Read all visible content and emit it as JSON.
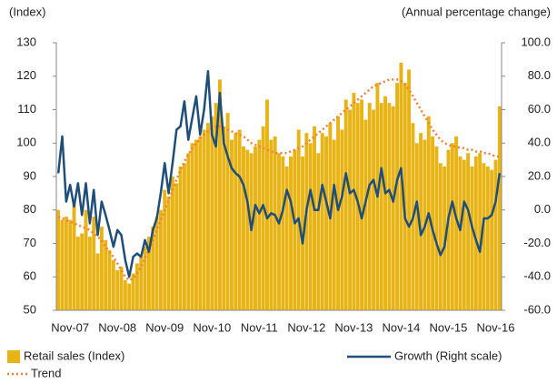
{
  "chart_data": {
    "type": "bar",
    "y_label": "(Index)",
    "y2_label": "(Annual percentage change)",
    "categories": [
      null,
      null,
      null,
      "Nov-07",
      null,
      null,
      null,
      null,
      null,
      null,
      null,
      null,
      null,
      null,
      null,
      "Nov-08",
      null,
      null,
      null,
      null,
      null,
      null,
      null,
      null,
      null,
      null,
      null,
      "Nov-09",
      null,
      null,
      null,
      null,
      null,
      null,
      null,
      null,
      null,
      null,
      null,
      "Nov-10",
      null,
      null,
      null,
      null,
      null,
      null,
      null,
      null,
      null,
      null,
      null,
      "Nov-11",
      null,
      null,
      null,
      null,
      null,
      null,
      null,
      null,
      null,
      null,
      null,
      "Nov-12",
      null,
      null,
      null,
      null,
      null,
      null,
      null,
      null,
      null,
      null,
      null,
      "Nov-13",
      null,
      null,
      null,
      null,
      null,
      null,
      null,
      null,
      null,
      null,
      null,
      "Nov-14",
      null,
      null,
      null,
      null,
      null,
      null,
      null,
      null,
      null,
      null,
      null,
      "Nov-15",
      null,
      null,
      null,
      null,
      null,
      null,
      null,
      null,
      null,
      null,
      null,
      "Nov-16",
      null
    ],
    "series": [
      {
        "name": "Retail  sales (Index)",
        "type": "bar",
        "color": "#e8b314",
        "axis": "y",
        "values": [
          80,
          77,
          78,
          77,
          83,
          72,
          73,
          80,
          72,
          78,
          67,
          75,
          71,
          68,
          65,
          62,
          63,
          59,
          58,
          61,
          64,
          66,
          69,
          72,
          75,
          78,
          80,
          86,
          84,
          90,
          88,
          93,
          94,
          97,
          100,
          101,
          102,
          104,
          106,
          108,
          112,
          119,
          105,
          109,
          101,
          103,
          104,
          99,
          98,
          97,
          99,
          101,
          105,
          113,
          101,
          102,
          97,
          96,
          93,
          96,
          98,
          104,
          96,
          103,
          100,
          105,
          97,
          103,
          102,
          106,
          101,
          108,
          104,
          113,
          110,
          115,
          112,
          113,
          107,
          112,
          110,
          118,
          112,
          114,
          112,
          111,
          118,
          124,
          118,
          122,
          106,
          100,
          103,
          101,
          108,
          102,
          99,
          94,
          93,
          98,
          100,
          102,
          96,
          95,
          97,
          93,
          96,
          97,
          94,
          93,
          92,
          95,
          111
        ]
      },
      {
        "name": "Trend",
        "type": "line",
        "style": "dotted",
        "color": "#f0813a",
        "axis": "y",
        "values": [
          78,
          77.5,
          77,
          76.5,
          76,
          75.5,
          75,
          74.5,
          74,
          73,
          72,
          71,
          69,
          67.5,
          66,
          64,
          62,
          60,
          59,
          59.5,
          61,
          63,
          65.5,
          68,
          71,
          74,
          77,
          80,
          83,
          86,
          89,
          92,
          94.5,
          96.5,
          98.5,
          100,
          101.5,
          102.5,
          103.5,
          104.5,
          105,
          105,
          104.5,
          104,
          103.5,
          103,
          102.5,
          102,
          101,
          100,
          99.5,
          99,
          98.5,
          98,
          97.5,
          97,
          97,
          97,
          97,
          97.5,
          98,
          98.5,
          99,
          100,
          101,
          102,
          103,
          104,
          105,
          106,
          107,
          108,
          109,
          110,
          111,
          112,
          113,
          114,
          115,
          116,
          117,
          117.5,
          118,
          118.5,
          119,
          119,
          119,
          118.5,
          117.5,
          116,
          114,
          112,
          110,
          108,
          106,
          104,
          102.5,
          101,
          100,
          99.5,
          99,
          99,
          98.5,
          98.5,
          98,
          98,
          97.5,
          97.5,
          97,
          97,
          96.5,
          96,
          96
        ]
      },
      {
        "name": "Growth (Right scale)",
        "type": "line",
        "style": "solid",
        "color": "#1f4e7a",
        "axis": "y2",
        "values": [
          22,
          44,
          5,
          15,
          2,
          16,
          -3,
          16,
          -8,
          12,
          -15,
          5,
          -3,
          -12,
          -22,
          -12,
          -15,
          -30,
          -40,
          -28,
          -26,
          -28,
          -18,
          -25,
          -12,
          -5,
          10,
          28,
          10,
          28,
          48,
          50,
          65,
          42,
          55,
          68,
          45,
          60,
          83,
          45,
          38,
          70,
          40,
          32,
          25,
          22,
          20,
          15,
          5,
          -12,
          3,
          -2,
          3,
          -5,
          -2,
          -3,
          -8,
          0,
          12,
          5,
          -8,
          -5,
          -20,
          0,
          12,
          0,
          0,
          15,
          5,
          -5,
          15,
          0,
          8,
          22,
          10,
          12,
          5,
          -5,
          5,
          15,
          18,
          8,
          25,
          10,
          12,
          5,
          18,
          25,
          -5,
          -10,
          -5,
          5,
          -15,
          -10,
          -2,
          -12,
          -20,
          -27,
          -22,
          -5,
          5,
          -5,
          -12,
          5,
          0,
          -10,
          -18,
          -25,
          -5,
          -5,
          -3,
          5,
          22
        ]
      }
    ],
    "ylim": [
      50,
      130
    ],
    "yticks": [
      50,
      60,
      70,
      80,
      90,
      100,
      110,
      120,
      130
    ],
    "y2lim": [
      -60,
      100
    ],
    "y2ticks": [
      {
        "value": -60,
        "label": "-60.0"
      },
      {
        "value": -40,
        "label": "-40.0"
      },
      {
        "value": -20,
        "label": "-20.0"
      },
      {
        "value": 0,
        "label": "0.0"
      },
      {
        "value": 20,
        "label": "20.0"
      },
      {
        "value": 40,
        "label": "40.0"
      },
      {
        "value": 60,
        "label": "60.0"
      },
      {
        "value": 80,
        "label": "80.0"
      },
      {
        "value": 100,
        "label": "100.0"
      }
    ]
  }
}
